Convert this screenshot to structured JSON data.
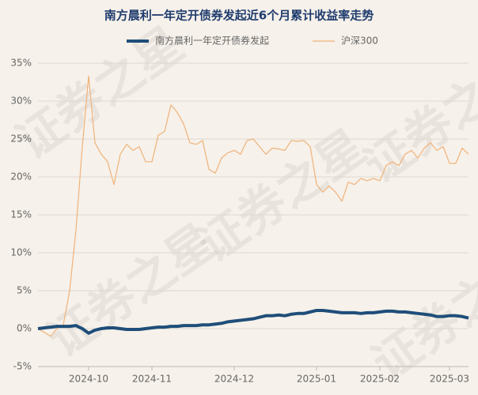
{
  "chart_data": {
    "type": "line",
    "title": "南方晨利一年定开债券发起近6个月累计收益率走势",
    "watermark": "证券之星",
    "categories": [
      null,
      null,
      null,
      null,
      null,
      null,
      null,
      null,
      "2024-10",
      null,
      null,
      null,
      null,
      null,
      null,
      null,
      null,
      null,
      "2024-11",
      null,
      null,
      null,
      null,
      null,
      null,
      null,
      null,
      null,
      null,
      null,
      null,
      "2024-12",
      null,
      null,
      null,
      null,
      null,
      null,
      null,
      null,
      null,
      null,
      null,
      null,
      "2025-01",
      null,
      null,
      null,
      null,
      null,
      null,
      null,
      null,
      null,
      "2025-02",
      null,
      null,
      null,
      null,
      null,
      null,
      null,
      null,
      null,
      null,
      "2025-03",
      null,
      null,
      null
    ],
    "series": [
      {
        "name": "南方晨利一年定开债券发起",
        "color": "#1f4e79",
        "width": 4,
        "values": [
          0,
          0.1,
          0.2,
          0.3,
          0.3,
          0.3,
          0.4,
          0,
          -0.6,
          -0.2,
          0,
          0.1,
          0.1,
          0,
          -0.1,
          -0.1,
          -0.1,
          0,
          0.1,
          0.2,
          0.2,
          0.3,
          0.3,
          0.4,
          0.4,
          0.4,
          0.5,
          0.5,
          0.6,
          0.7,
          0.9,
          1.0,
          1.1,
          1.2,
          1.3,
          1.5,
          1.7,
          1.7,
          1.8,
          1.7,
          1.9,
          2.0,
          2.0,
          2.2,
          2.4,
          2.4,
          2.3,
          2.2,
          2.1,
          2.1,
          2.1,
          2.0,
          2.1,
          2.1,
          2.2,
          2.3,
          2.3,
          2.2,
          2.2,
          2.1,
          2.0,
          1.9,
          1.8,
          1.6,
          1.6,
          1.7,
          1.7,
          1.6,
          1.4
        ]
      },
      {
        "name": "沪深300",
        "color": "#f0b27a",
        "width": 1.2,
        "values": [
          0,
          -0.5,
          -1.0,
          0,
          0.5,
          5,
          13,
          24,
          33.3,
          24.5,
          23,
          22,
          19,
          23,
          24.3,
          23.5,
          24,
          22,
          22,
          25.5,
          26,
          29.5,
          28.5,
          27,
          24.5,
          24.3,
          24.8,
          21,
          20.5,
          22.5,
          23.2,
          23.5,
          23,
          24.8,
          25,
          24,
          23,
          23.8,
          23.7,
          23.5,
          24.8,
          24.7,
          24.8,
          24,
          19,
          18,
          18.8,
          18,
          16.8,
          19.3,
          19,
          19.8,
          19.5,
          19.8,
          19.5,
          21.5,
          22,
          21.5,
          23,
          23.5,
          22.5,
          23.8,
          24.5,
          23.5,
          24,
          21.8,
          21.8,
          23.8,
          23
        ]
      }
    ],
    "ylim": [
      -5,
      35
    ],
    "yticks": [
      {
        "value": -5,
        "label": "-5%"
      },
      {
        "value": 0,
        "label": "0%"
      },
      {
        "value": 5,
        "label": "5%"
      },
      {
        "value": 10,
        "label": "10%"
      },
      {
        "value": 15,
        "label": "15%"
      },
      {
        "value": 20,
        "label": "20%"
      },
      {
        "value": 25,
        "label": "25%"
      },
      {
        "value": 30,
        "label": "30%"
      },
      {
        "value": 35,
        "label": "35%"
      }
    ],
    "grid": true
  }
}
